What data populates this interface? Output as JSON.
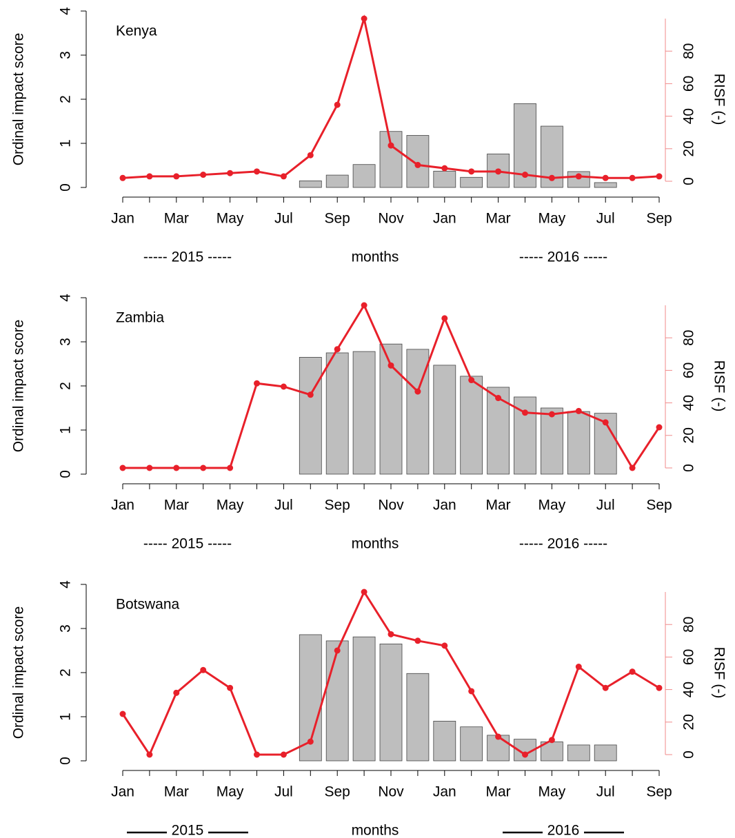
{
  "chart_data": [
    {
      "type": "combo",
      "title": "Kenya",
      "y_label": "Ordinal impact score",
      "y2_label": "RISF (-)",
      "x_label": "months",
      "year_labels": [
        "----- 2015 -----",
        "----- 2016 -----"
      ],
      "categories": [
        "Jan",
        null,
        "Mar",
        null,
        "May",
        null,
        "Jul",
        null,
        "Sep",
        null,
        "Nov",
        null,
        "Jan",
        null,
        "Mar",
        null,
        "May",
        null,
        "Jul",
        null,
        "Sep"
      ],
      "ylim": [
        0,
        4
      ],
      "yticks": [
        0,
        1,
        2,
        3,
        4
      ],
      "y2lim": [
        0,
        100
      ],
      "y2ticks": [
        0,
        20,
        40,
        60,
        80
      ],
      "series": [
        {
          "type": "bar",
          "color": "#bebebe",
          "values": [
            null,
            null,
            null,
            null,
            null,
            null,
            null,
            0.15,
            0.28,
            0.52,
            1.27,
            1.18,
            0.37,
            0.23,
            0.76,
            1.9,
            1.39,
            0.36,
            0.11,
            null,
            null
          ]
        },
        {
          "type": "line",
          "axis": "y2",
          "color": "#e8202a",
          "values": [
            2,
            3,
            3,
            4,
            5,
            6,
            3,
            16,
            47,
            100,
            22,
            10,
            8,
            6,
            6,
            4,
            2,
            3,
            2,
            2,
            3
          ]
        }
      ]
    },
    {
      "type": "combo",
      "title": "Zambia",
      "y_label": "Ordinal impact score",
      "y2_label": "RISF (-)",
      "x_label": "months",
      "year_labels": [
        "----- 2015 -----",
        "----- 2016 -----"
      ],
      "categories": [
        "Jan",
        null,
        "Mar",
        null,
        "May",
        null,
        "Jul",
        null,
        "Sep",
        null,
        "Nov",
        null,
        "Jan",
        null,
        "Mar",
        null,
        "May",
        null,
        "Jul",
        null,
        "Sep"
      ],
      "ylim": [
        0,
        4
      ],
      "yticks": [
        0,
        1,
        2,
        3,
        4
      ],
      "y2lim": [
        0,
        100
      ],
      "y2ticks": [
        0,
        20,
        40,
        60,
        80
      ],
      "series": [
        {
          "type": "bar",
          "color": "#bebebe",
          "values": [
            null,
            null,
            null,
            null,
            null,
            null,
            null,
            2.65,
            2.75,
            2.78,
            2.95,
            2.83,
            2.47,
            2.22,
            1.97,
            1.75,
            1.5,
            1.42,
            1.38,
            null,
            null
          ]
        },
        {
          "type": "line",
          "axis": "y2",
          "color": "#e8202a",
          "values": [
            0,
            0,
            0,
            0,
            0,
            52,
            50,
            45,
            73,
            100,
            63,
            47,
            92,
            54,
            43,
            34,
            33,
            35,
            28,
            0,
            25
          ]
        }
      ]
    },
    {
      "type": "combo",
      "title": "Botswana",
      "y_label": "Ordinal impact score",
      "y2_label": "RISF (-)",
      "x_label": "months",
      "year_labels": [
        "2015",
        "2016"
      ],
      "categories": [
        "Jan",
        null,
        "Mar",
        null,
        "May",
        null,
        "Jul",
        null,
        "Sep",
        null,
        "Nov",
        null,
        "Jan",
        null,
        "Mar",
        null,
        "May",
        null,
        "Jul",
        null,
        "Sep"
      ],
      "ylim": [
        0,
        4
      ],
      "yticks": [
        0,
        1,
        2,
        3,
        4
      ],
      "y2lim": [
        0,
        100
      ],
      "y2ticks": [
        0,
        20,
        40,
        60,
        80
      ],
      "series": [
        {
          "type": "bar",
          "color": "#bebebe",
          "values": [
            null,
            null,
            null,
            null,
            null,
            null,
            null,
            2.86,
            2.72,
            2.81,
            2.65,
            1.98,
            0.9,
            0.77,
            0.58,
            0.49,
            0.43,
            0.36,
            0.36,
            null,
            null
          ]
        },
        {
          "type": "line",
          "axis": "y2",
          "color": "#e8202a",
          "values": [
            25,
            0,
            38,
            52,
            41,
            0,
            0,
            8,
            64,
            100,
            74,
            70,
            67,
            39,
            11,
            0,
            9,
            54,
            41,
            51,
            41
          ]
        }
      ]
    }
  ]
}
